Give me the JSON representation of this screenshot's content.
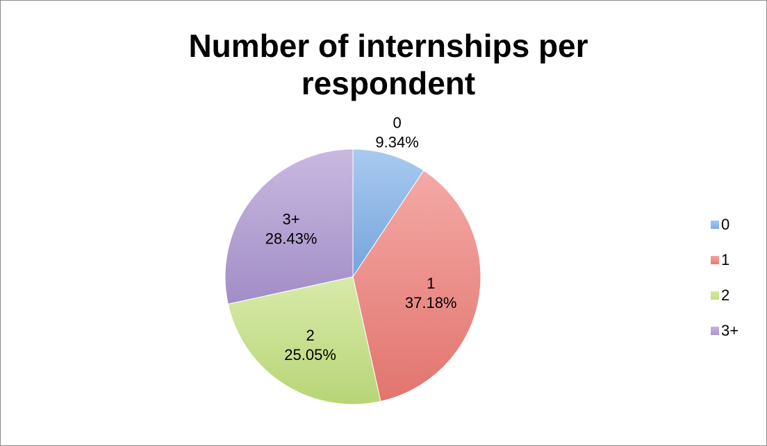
{
  "chart_data": {
    "type": "pie",
    "title": "Number of internships per respondent",
    "categories": [
      "0",
      "1",
      "2",
      "3+"
    ],
    "values": [
      9.34,
      37.18,
      25.05,
      28.43
    ],
    "value_labels": [
      "9.34%",
      "37.18%",
      "25.05%",
      "28.43%"
    ],
    "colors": [
      "#7aaee8",
      "#ee7a74",
      "#c2e07c",
      "#ab94d0"
    ],
    "legend": {
      "placement": "right",
      "entries": [
        "0",
        "1",
        "2",
        "3+"
      ]
    },
    "start_angle_deg": 0,
    "direction": "clockwise"
  }
}
